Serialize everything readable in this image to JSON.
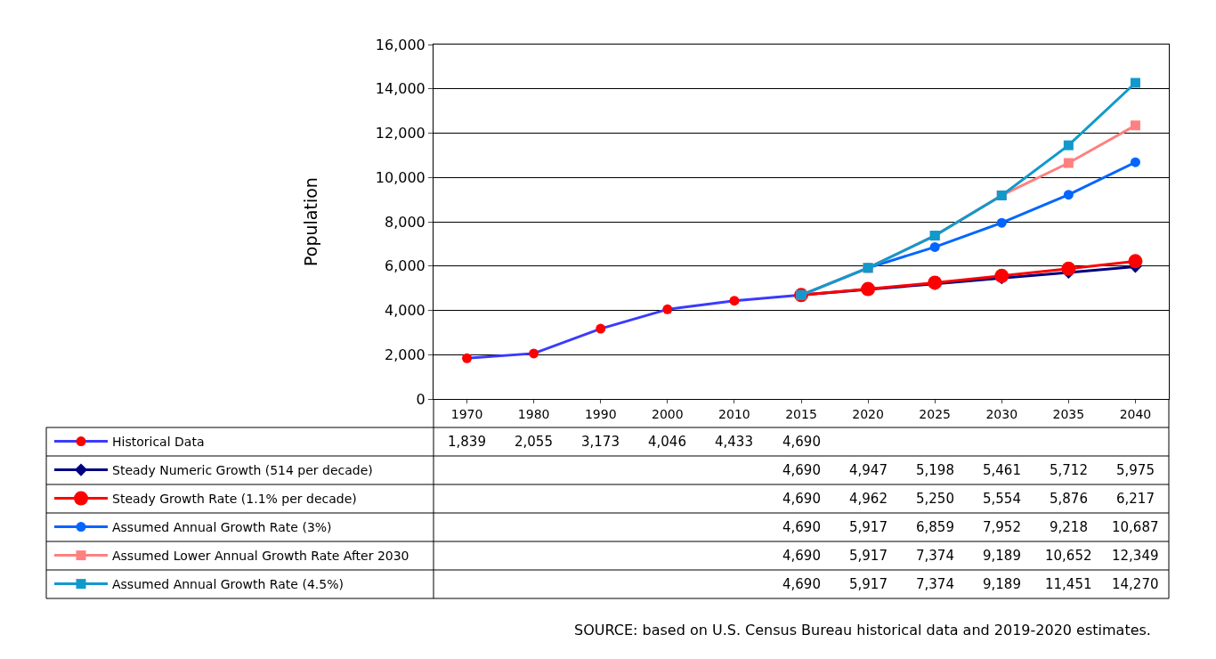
{
  "chart_data": {
    "type": "line",
    "ylabel": "Population",
    "categories": [
      "1970",
      "1980",
      "1990",
      "2000",
      "2010",
      "2015",
      "2020",
      "2025",
      "2030",
      "2035",
      "2040"
    ],
    "ylim": [
      0,
      16000
    ],
    "yticks": [
      0,
      {
        "value": 2000,
        "label": "2,000"
      },
      {
        "value": 4000,
        "label": "4,000"
      },
      {
        "value": 6000,
        "label": "6,000"
      },
      {
        "value": 8000,
        "label": "8,000"
      },
      {
        "value": 10000,
        "label": "10,000"
      },
      {
        "value": 12000,
        "label": "12,000"
      },
      {
        "value": 14000,
        "label": "14,000"
      },
      {
        "value": 16000,
        "label": "16,000"
      }
    ],
    "grid": "y",
    "legend": "bottom left",
    "line_style": "solid",
    "series": [
      {
        "name": "Historical Data",
        "color": "#3a3aff",
        "marker": "circle",
        "colors": [
          "#ff0000",
          "#ff0000",
          "#ff0000",
          "#ff0000",
          "#ff0000",
          "#ff0000",
          null,
          null,
          null,
          null,
          null
        ],
        "values": [
          1839,
          2055,
          3173,
          4046,
          4433,
          4690,
          null,
          null,
          null,
          null,
          null
        ],
        "value_labels": [
          "1,839",
          "2,055",
          "3,173",
          "4,046",
          "4,433",
          "4,690",
          null,
          null,
          null,
          null,
          null
        ]
      },
      {
        "name": "Steady Numeric Growth (514 per decade)",
        "color": "#000080",
        "marker": "diamond",
        "values": [
          null,
          null,
          null,
          null,
          null,
          4690,
          4947,
          5198,
          5461,
          5712,
          5975
        ],
        "value_labels": [
          null,
          null,
          null,
          null,
          null,
          "4,690",
          "4,947",
          "5,198",
          "5,461",
          "5,712",
          "5,975"
        ]
      },
      {
        "name": "Steady Growth Rate (1.1% per decade)",
        "color": "#ff0000",
        "marker": "circle",
        "values": [
          null,
          null,
          null,
          null,
          null,
          4690,
          4962,
          5250,
          5554,
          5876,
          6217
        ],
        "value_labels": [
          null,
          null,
          null,
          null,
          null,
          "4,690",
          "4,962",
          "5,250",
          "5,554",
          "5,876",
          "6,217"
        ]
      },
      {
        "name": "Assumed Annual Growth Rate (3%)",
        "color": "#0066ff",
        "marker": "circle",
        "values": [
          null,
          null,
          null,
          null,
          null,
          4690,
          5917,
          6859,
          7952,
          9218,
          10687
        ],
        "value_labels": [
          null,
          null,
          null,
          null,
          null,
          "4,690",
          "5,917",
          "6,859",
          "7,952",
          "9,218",
          "10,687"
        ]
      },
      {
        "name": "Assumed Lower Annual Growth Rate After 2030",
        "color": "#ff8080",
        "marker": "square",
        "values": [
          null,
          null,
          null,
          null,
          null,
          4690,
          5917,
          7374,
          9189,
          10652,
          12349
        ],
        "value_labels": [
          null,
          null,
          null,
          null,
          null,
          "4,690",
          "5,917",
          "7,374",
          "9,189",
          "10,652",
          "12,349"
        ]
      },
      {
        "name": "Assumed Annual Growth Rate (4.5%)",
        "color": "#1199cc",
        "marker": "square",
        "values": [
          null,
          null,
          null,
          null,
          null,
          4690,
          5917,
          7374,
          9189,
          11451,
          14270
        ],
        "value_labels": [
          null,
          null,
          null,
          null,
          null,
          "4,690",
          "5,917",
          "7,374",
          "9,189",
          "11,451",
          "14,270"
        ]
      }
    ],
    "annotations": [
      "SOURCE: based on U.S. Census Bureau historical data and 2019-2020 estimates."
    ]
  }
}
